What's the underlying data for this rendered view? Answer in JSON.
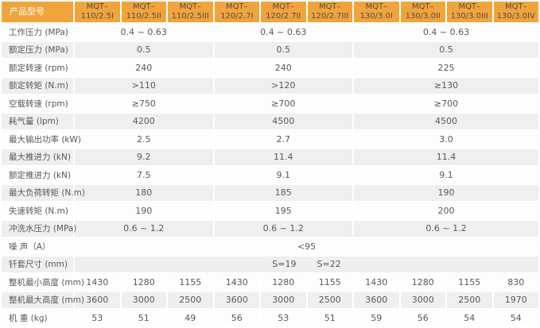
{
  "colors": {
    "header_bg": "#F1A43B",
    "header_model_text": "#4D4D4D",
    "corner_text": "#FFFFFF",
    "body_text": "#58585A",
    "row_bg": "#FDFDFD",
    "row_alt_bg": "#EFEFEF"
  },
  "table": {
    "corner_label": "产品型号",
    "models": [
      {
        "line1": "MQT–",
        "line2": "110/2.5I"
      },
      {
        "line1": "MQT–",
        "line2": "110/2.5II"
      },
      {
        "line1": "MQT–",
        "line2": "110/2.5III"
      },
      {
        "line1": "MQT–",
        "line2": "120/2.7I"
      },
      {
        "line1": "MQT–",
        "line2": "120/2.7II"
      },
      {
        "line1": "MQT–",
        "line2": "120/2.7III"
      },
      {
        "line1": "MQT–",
        "line2": "130/3.0I"
      },
      {
        "line1": "MQT–",
        "line2": "130/3.0II"
      },
      {
        "line1": "MQT–",
        "line2": "130/3.0III"
      },
      {
        "line1": "MQT–",
        "line2": "130/3.0IV"
      }
    ],
    "grouped_rows": [
      {
        "label": "工作压力 (MPa)",
        "values": [
          "0.4 ~ 0.63",
          "0.4 ~ 0.63",
          "0.4 ~ 0.63"
        ]
      },
      {
        "label": "额定压力 (MPa)",
        "values": [
          "0.5",
          "0.5",
          "0.5"
        ]
      },
      {
        "label": "额定转速 (rpm)",
        "values": [
          "240",
          "240",
          "225"
        ]
      },
      {
        "label": "额定转矩 (N.m)",
        "values": [
          ">110",
          ">120",
          "≥130"
        ]
      },
      {
        "label": "空载转速 (rpm)",
        "values": [
          "≥750",
          "≥700",
          "≥700"
        ]
      },
      {
        "label": "耗气量 (lpm)",
        "values": [
          "4200",
          "4500",
          "4500"
        ]
      },
      {
        "label": "最大输出功率 (kW)",
        "values": [
          "2.5",
          "2.7",
          "3.0"
        ]
      },
      {
        "label": "最大推进力 (kN)",
        "values": [
          "9.2",
          "11.4",
          "11.4"
        ]
      },
      {
        "label": "额定推进力 (kN)",
        "values": [
          "7.5",
          "9.1",
          "9.1"
        ]
      },
      {
        "label": "最大负荷转矩 (N.m)",
        "values": [
          "180",
          "185",
          "190"
        ]
      },
      {
        "label": "失速转矩 (N.m)",
        "values": [
          "190",
          "195",
          "200"
        ]
      },
      {
        "label": "冲洗水压力 (MPa)",
        "values": [
          "0.6 ~ 1.2",
          "0.6 ~ 1.2",
          "0.6 ~ 1.2"
        ]
      }
    ],
    "noise_row": {
      "label": "噪 声（A）",
      "value": "<95"
    },
    "sleeve_row": {
      "label": "钎套尺寸 (mm)",
      "values": [
        "S=19",
        "S=22"
      ]
    },
    "percol_rows": [
      {
        "label": "整机最小高度 (mm)",
        "values": [
          "1430",
          "1280",
          "1155",
          "1430",
          "1280",
          "1155",
          "1430",
          "1280",
          "1155",
          "830"
        ]
      },
      {
        "label": "整机最大高度 (mm)",
        "values": [
          "3600",
          "3000",
          "2500",
          "3600",
          "3000",
          "2500",
          "3600",
          "3000",
          "2500",
          "1970"
        ]
      },
      {
        "label": "机 重 (kg)",
        "values": [
          "53",
          "51",
          "49",
          "56",
          "53",
          "51",
          "59",
          "56",
          "54",
          "54"
        ]
      }
    ]
  }
}
